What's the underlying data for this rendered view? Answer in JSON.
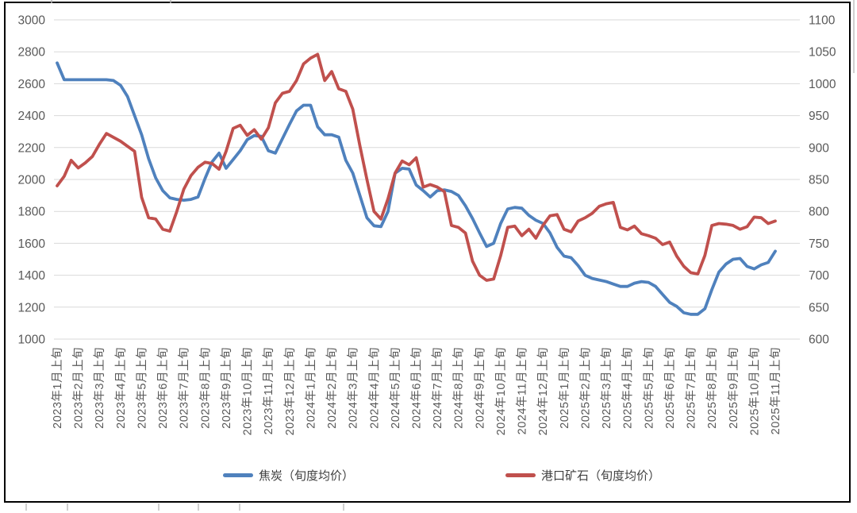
{
  "chart_data": {
    "type": "line",
    "title": "",
    "x_start": "2023年1月上旬",
    "x_frequency": "每旬（上旬/中旬/下旬），每月3个数据点",
    "x_tick_labels": [
      "2023年1月上旬",
      "2023年2月上旬",
      "2023年3月上旬",
      "2023年4月上旬",
      "2023年5月上旬",
      "2023年6月上旬",
      "2023年7月上旬",
      "2023年8月上旬",
      "2023年9月上旬",
      "2023年10月上旬",
      "2023年11月上旬",
      "2023年12月上旬",
      "2024年1月上旬",
      "2024年2月上旬",
      "2024年3月上旬",
      "2024年4月上旬",
      "2024年5月上旬",
      "2024年6月上旬",
      "2024年7月上旬",
      "2024年8月上旬",
      "2024年9月上旬",
      "2024年10月上旬",
      "2024年11月上旬",
      "2024年12月上旬",
      "2025年1月上旬",
      "2025年2月上旬",
      "2025年3月上旬",
      "2025年4月上旬",
      "2025年5月上旬",
      "2025年6月上旬",
      "2025年7月上旬",
      "2025年8月上旬",
      "2025年9月上旬",
      "2025年10月上旬",
      "2025年11月上旬"
    ],
    "axes": {
      "left": {
        "min": 1000,
        "max": 3000,
        "step": 200,
        "tick_labels": [
          "3000",
          "2800",
          "2600",
          "2400",
          "2200",
          "2000",
          "1800",
          "1600",
          "1400",
          "1200",
          "1000"
        ]
      },
      "right": {
        "min": 600,
        "max": 1100,
        "step": 50,
        "tick_labels": [
          "1100",
          "1050",
          "1000",
          "950",
          "900",
          "850",
          "800",
          "750",
          "700",
          "650",
          "600"
        ]
      }
    },
    "grid": "horizontal",
    "legend_position": "bottom",
    "series": [
      {
        "name": "焦炭（旬度均价）",
        "axis": "left",
        "color": "#4F81BD",
        "values": [
          2730,
          2625,
          2625,
          2625,
          2625,
          2625,
          2625,
          2625,
          2620,
          2590,
          2520,
          2400,
          2280,
          2130,
          2010,
          1930,
          1885,
          1875,
          1870,
          1875,
          1890,
          2005,
          2110,
          2165,
          2070,
          2125,
          2180,
          2250,
          2275,
          2270,
          2180,
          2165,
          2255,
          2345,
          2430,
          2465,
          2465,
          2330,
          2280,
          2280,
          2265,
          2120,
          2040,
          1900,
          1760,
          1710,
          1705,
          1800,
          2040,
          2070,
          2065,
          1965,
          1930,
          1890,
          1930,
          1935,
          1925,
          1900,
          1835,
          1755,
          1665,
          1580,
          1600,
          1725,
          1815,
          1825,
          1820,
          1775,
          1745,
          1725,
          1665,
          1575,
          1520,
          1510,
          1460,
          1400,
          1380,
          1370,
          1360,
          1345,
          1330,
          1330,
          1350,
          1360,
          1355,
          1330,
          1280,
          1230,
          1205,
          1165,
          1155,
          1155,
          1190,
          1310,
          1420,
          1470,
          1500,
          1505,
          1455,
          1440,
          1465,
          1480,
          1550
        ]
      },
      {
        "name": "港口矿石（旬度均价）",
        "axis": "right",
        "color": "#C0504D",
        "values": [
          840,
          855,
          880,
          868,
          876,
          886,
          905,
          922,
          916,
          910,
          902,
          894,
          822,
          790,
          788,
          772,
          769,
          800,
          835,
          856,
          869,
          877,
          875,
          866,
          894,
          930,
          935,
          919,
          928,
          913,
          931,
          970,
          985,
          988,
          1005,
          1031,
          1040,
          1046,
          1005,
          1019,
          992,
          988,
          960,
          903,
          850,
          800,
          788,
          820,
          860,
          879,
          873,
          884,
          838,
          842,
          838,
          831,
          778,
          775,
          766,
          722,
          700,
          692,
          694,
          731,
          775,
          777,
          762,
          772,
          758,
          778,
          793,
          795,
          772,
          768,
          785,
          790,
          797,
          808,
          812,
          814,
          775,
          771,
          777,
          765,
          762,
          758,
          748,
          752,
          730,
          714,
          704,
          702,
          731,
          778,
          781,
          780,
          778,
          772,
          776,
          791,
          790,
          781,
          785
        ]
      }
    ]
  },
  "legend": {
    "coke": "焦炭（旬度均价）",
    "ore": "港口矿石（旬度均价）"
  },
  "colors": {
    "coke": "#4F81BD",
    "ore": "#C0504D",
    "grid": "#D9D9D9",
    "axis_text": "#595959",
    "frame": "#000000",
    "edge_tick": "#b0b0b0"
  }
}
